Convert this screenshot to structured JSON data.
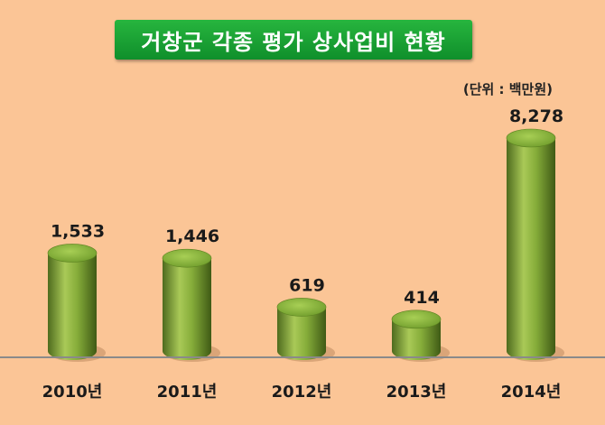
{
  "chart_data": {
    "type": "bar",
    "title": "거창군 각종 평가 상사업비 현황",
    "unit": "(단위 : 백만원)",
    "categories": [
      "2010년",
      "2011년",
      "2012년",
      "2013년",
      "2014년"
    ],
    "values": [
      1533,
      1446,
      619,
      414,
      8278
    ],
    "value_labels": [
      "1,533",
      "1,446",
      "619",
      "414",
      "8,278"
    ],
    "xlabel": "",
    "ylabel": "",
    "ylim": [
      0,
      8278
    ],
    "grid": false,
    "legend": "none",
    "bar_style": "3d-cylinder",
    "colors": {
      "background": "#fbc596",
      "title_banner": "#1aa33a",
      "bar_light": "#a9c957",
      "bar_dark": "#4e6b1e",
      "bar_top": "#8db83e",
      "axis_line": "#8a8a8a"
    }
  }
}
